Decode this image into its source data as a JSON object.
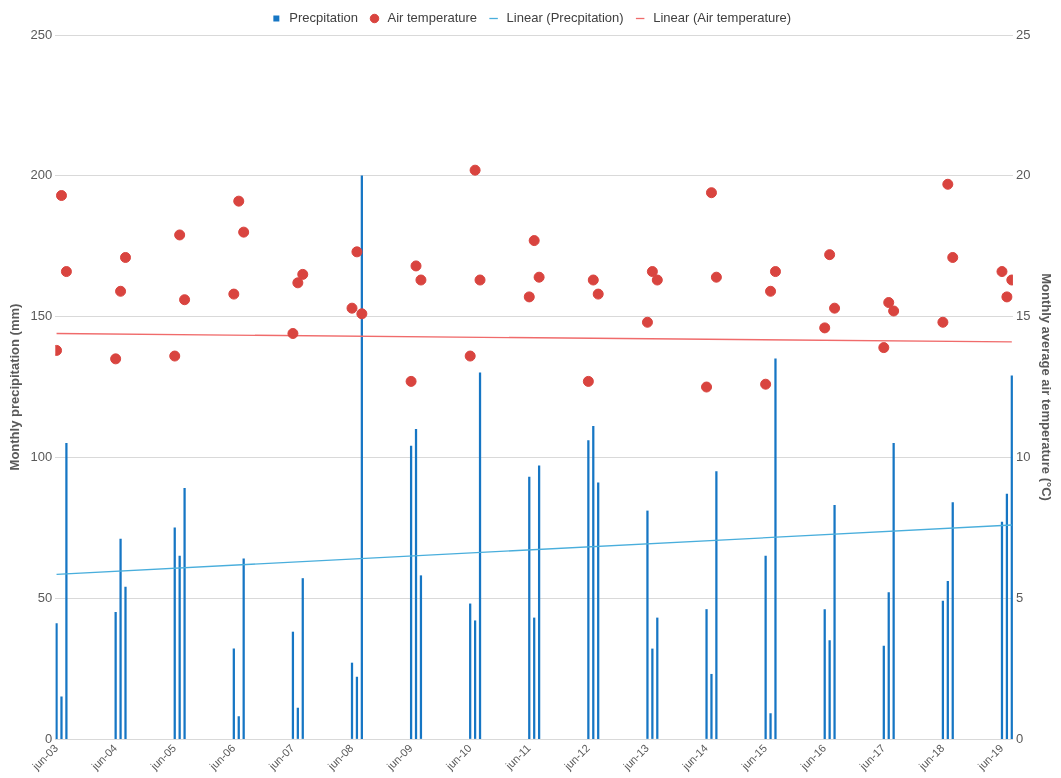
{
  "chart_data": {
    "type": "bar",
    "ylabel": "Monthly precipitation (mm)",
    "y2label": "Monthly average air temperature (°C)",
    "x": [
      "2003-06",
      "2003-07",
      "2003-08",
      "2004-06",
      "2004-07",
      "2004-08",
      "2005-06",
      "2005-07",
      "2005-08",
      "2006-06",
      "2006-07",
      "2006-08",
      "2007-06",
      "2007-07",
      "2007-08",
      "2008-06",
      "2008-07",
      "2008-08",
      "2009-06",
      "2009-07",
      "2009-08",
      "2010-06",
      "2010-07",
      "2010-08",
      "2011-06",
      "2011-07",
      "2011-08",
      "2012-06",
      "2012-07",
      "2012-08",
      "2013-06",
      "2013-07",
      "2013-08",
      "2014-06",
      "2014-07",
      "2014-08",
      "2015-06",
      "2015-07",
      "2015-08",
      "2016-06",
      "2016-07",
      "2016-08",
      "2017-06",
      "2017-07",
      "2017-08",
      "2018-06",
      "2018-07",
      "2018-08",
      "2019-06",
      "2019-07",
      "2019-08"
    ],
    "series": [
      {
        "name": "Precpitation",
        "color": "#1676c4",
        "values": [
          41,
          15,
          105,
          45,
          71,
          54,
          75,
          65,
          89,
          32,
          8,
          64,
          38,
          11,
          57,
          27,
          22,
          200,
          104,
          110,
          58,
          48,
          42,
          130,
          93,
          43,
          97,
          106,
          111,
          91,
          81,
          32,
          43,
          46,
          23,
          95,
          65,
          9,
          135,
          46,
          35,
          83,
          33,
          52,
          105,
          49,
          56,
          84,
          77,
          87,
          129
        ]
      },
      {
        "name": "Air temperature",
        "type": "scatter",
        "marker": "circle",
        "axis": "y2",
        "color": "#d9443f",
        "values": [
          13.8,
          19.3,
          16.6,
          13.5,
          15.9,
          17.1,
          13.6,
          17.9,
          15.6,
          15.8,
          19.1,
          18.0,
          14.4,
          16.2,
          16.5,
          15.3,
          17.3,
          15.1,
          12.7,
          16.8,
          16.3,
          13.6,
          20.2,
          16.3,
          15.7,
          17.7,
          16.4,
          12.7,
          16.3,
          15.8,
          14.8,
          16.6,
          16.3,
          12.5,
          19.4,
          16.4,
          12.6,
          15.9,
          16.6,
          14.6,
          17.2,
          15.3,
          13.9,
          15.5,
          15.2,
          14.8,
          19.7,
          17.1,
          16.6,
          15.7,
          16.3
        ]
      },
      {
        "name": "Linear (Precpitation)",
        "type": "line",
        "color": "#49aedc",
        "x": [
          "2003-06",
          "2019-08"
        ],
        "values": [
          58.5,
          76
        ]
      },
      {
        "name": "Linear (Air temperature)",
        "type": "line",
        "axis": "y2",
        "color": "#f06b6b",
        "x": [
          "2003-06",
          "2019-08"
        ],
        "values": [
          14.4,
          14.1
        ]
      }
    ],
    "xlim": [
      "2003-05-24",
      "2019-08-08"
    ],
    "xticks": [
      {
        "value": "2003-06",
        "label": "jun-03"
      },
      {
        "value": "2004-06",
        "label": "jun-04"
      },
      {
        "value": "2005-06",
        "label": "jun-05"
      },
      {
        "value": "2006-06",
        "label": "jun-06"
      },
      {
        "value": "2007-06",
        "label": "jun-07"
      },
      {
        "value": "2008-06",
        "label": "jun-08"
      },
      {
        "value": "2009-06",
        "label": "jun-09"
      },
      {
        "value": "2010-06",
        "label": "jun-10"
      },
      {
        "value": "2011-06",
        "label": "jun-11"
      },
      {
        "value": "2012-06",
        "label": "jun-12"
      },
      {
        "value": "2013-06",
        "label": "jun-13"
      },
      {
        "value": "2014-06",
        "label": "jun-14"
      },
      {
        "value": "2015-06",
        "label": "jun-15"
      },
      {
        "value": "2016-06",
        "label": "jun-16"
      },
      {
        "value": "2017-06",
        "label": "jun-17"
      },
      {
        "value": "2018-06",
        "label": "jun-18"
      },
      {
        "value": "2019-06",
        "label": "jun-19"
      }
    ],
    "ylim": [
      0,
      250
    ],
    "yticks": [
      0,
      50,
      100,
      150,
      200,
      250
    ],
    "y2lim": [
      0,
      25
    ],
    "y2ticks": [
      0,
      5,
      10,
      15,
      20,
      25
    ],
    "grid": "y",
    "legend": "top"
  }
}
